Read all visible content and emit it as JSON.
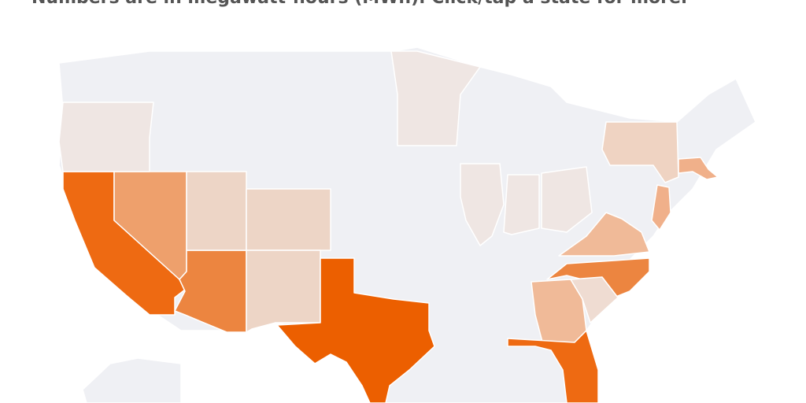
{
  "subtitle": "Numbers are in megawatt-hours (MWh). Click/tap a state for more.",
  "region_colors": [
    "#eff0f4",
    "#ec5f00",
    "#ee6a12",
    "#ec8540",
    "#eea06c",
    "#f0ba98",
    "#f0b08a",
    "#efd3c2",
    "#edd5c6",
    "#efdcd2",
    "#efe6e3"
  ]
}
